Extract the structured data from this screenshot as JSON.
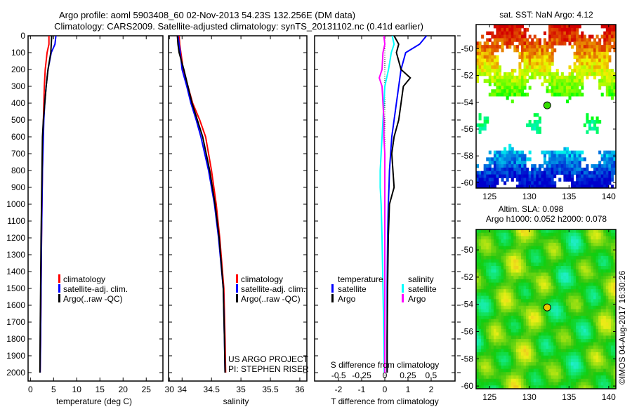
{
  "title_line1": "Argo profile: aoml 5903408_60 02-Nov-2013 54.23S 132.256E (DM data)",
  "title_line2": "Climatology: CARS2009. Satellite-adjusted climatology: synTS_20131102.nc (0.41d earlier)",
  "credit": "©IMOS 04-Aug-2017 16:30:26",
  "colors": {
    "climatology": "#ff0000",
    "satellite": "#0000ff",
    "argo": "#000000",
    "sal_satellite": "#00ffff",
    "sal_argo": "#ff00ff"
  },
  "chart_data": [
    {
      "type": "line",
      "xlabel": "temperature (deg C)",
      "xlim": [
        -0.5,
        28.6
      ],
      "ylim": [
        2050,
        0
      ],
      "xticks": [
        0,
        5,
        10,
        15,
        20,
        25,
        30
      ],
      "yticks": [
        0,
        100,
        200,
        300,
        400,
        500,
        600,
        700,
        800,
        900,
        1000,
        1100,
        1200,
        1300,
        1400,
        1500,
        1600,
        1700,
        1800,
        1900,
        2000
      ],
      "legend": [
        "climatology",
        "satellite-adj. clim.",
        "Argo(..raw -QC)"
      ],
      "pressure": [
        0,
        50,
        100,
        200,
        300,
        400,
        500,
        600,
        800,
        1000,
        1200,
        1500,
        1800,
        2000
      ],
      "series": [
        {
          "name": "climatology",
          "color": "#ff0000",
          "values": [
            4.0,
            4.0,
            3.6,
            3.2,
            3.0,
            2.9,
            2.8,
            2.7,
            2.6,
            2.5,
            2.4,
            2.3,
            2.2,
            2.1
          ]
        },
        {
          "name": "satellite-adj. clim.",
          "color": "#0000ff",
          "values": [
            5.5,
            5.3,
            4.5,
            3.8,
            3.4,
            3.1,
            2.9,
            2.8,
            2.6,
            2.5,
            2.4,
            2.3,
            2.2,
            2.1
          ]
        },
        {
          "name": "Argo",
          "color": "#000000",
          "values": [
            4.6,
            4.5,
            4.4,
            3.8,
            3.4,
            3.1,
            2.8,
            2.6,
            2.5,
            2.4,
            2.3,
            2.2,
            2.1,
            2.05
          ]
        }
      ]
    },
    {
      "type": "line",
      "xlabel": "salinity",
      "xlim": [
        33.77,
        36.12
      ],
      "ylim": [
        2050,
        0
      ],
      "xticks": [
        34,
        34.5,
        35,
        35.5,
        36
      ],
      "legend": [
        "climatology",
        "satellite-adj. clim.",
        "Argo(..raw -QC)"
      ],
      "annotation": [
        "US ARGO PROJECT",
        "PI: STEPHEN RISER"
      ],
      "pressure": [
        0,
        50,
        100,
        200,
        300,
        400,
        500,
        600,
        800,
        1000,
        1200,
        1500,
        1800,
        2000
      ],
      "series": [
        {
          "name": "climatology",
          "color": "#ff0000",
          "values": [
            33.95,
            33.96,
            33.98,
            34.02,
            34.1,
            34.18,
            34.3,
            34.4,
            34.5,
            34.58,
            34.64,
            34.71,
            34.73,
            34.74
          ]
        },
        {
          "name": "satellite-adj. clim.",
          "color": "#0000ff",
          "values": [
            33.93,
            33.95,
            33.97,
            34.0,
            34.08,
            34.15,
            34.24,
            34.32,
            34.45,
            34.55,
            34.62,
            34.7,
            34.72,
            34.73
          ]
        },
        {
          "name": "Argo",
          "color": "#000000",
          "values": [
            33.92,
            33.93,
            33.95,
            34.03,
            34.1,
            34.17,
            34.26,
            34.35,
            34.47,
            34.56,
            34.63,
            34.7,
            34.72,
            34.73
          ]
        }
      ]
    },
    {
      "type": "line",
      "xlabel": "T difference from climatology",
      "xlabel2": "S difference from climatology",
      "xlim": [
        -3.03,
        3.03
      ],
      "xlim2": [
        -0.76,
        0.76
      ],
      "ylim": [
        2050,
        0
      ],
      "xticks": [
        -2,
        -1,
        0,
        1,
        2
      ],
      "xticks2": [
        -0.5,
        -0.25,
        0,
        0.25,
        0.5
      ],
      "legend_headers": [
        "temperature",
        "salinity"
      ],
      "legend": [
        "satellite",
        "Argo",
        "satellite",
        "Argo"
      ],
      "pressure": [
        0,
        50,
        100,
        200,
        250,
        300,
        400,
        500,
        600,
        700,
        800,
        900,
        1000,
        1200,
        1500,
        1800,
        2000
      ],
      "series": [
        {
          "name": "T satellite",
          "axis": "T",
          "color": "#0000ff",
          "values": [
            1.8,
            1.5,
            0.9,
            0.7,
            0.65,
            0.6,
            0.5,
            0.4,
            0.3,
            0.25,
            0.2,
            0.18,
            0.15,
            0.12,
            0.1,
            0.1,
            0.1
          ]
        },
        {
          "name": "T Argo",
          "axis": "T",
          "color": "#000000",
          "values": [
            0.4,
            0.6,
            0.5,
            0.7,
            1.1,
            0.8,
            0.7,
            0.6,
            0.4,
            0.3,
            0.35,
            0.4,
            0.2,
            0.15,
            0.12,
            0.1,
            0.1
          ]
        },
        {
          "name": "S satellite",
          "axis": "S",
          "color": "#00ffff",
          "values": [
            0.08,
            0.1,
            0.07,
            0.04,
            0.02,
            0.0,
            -0.01,
            -0.02,
            -0.03,
            -0.04,
            -0.05,
            -0.05,
            -0.04,
            -0.03,
            -0.02,
            -0.01,
            -0.005
          ]
        },
        {
          "name": "S Argo",
          "axis": "S",
          "color": "#ff00ff",
          "values": [
            -0.01,
            0.0,
            -0.02,
            -0.03,
            -0.06,
            -0.03,
            -0.02,
            -0.01,
            -0.01,
            0.0,
            0.0,
            0.0,
            0.0,
            0.0,
            0.0,
            0.0,
            0.0
          ]
        }
      ]
    },
    {
      "type": "heatmap",
      "title": "sat. SST: NaN Argo: 4.12",
      "xlim": [
        123.3,
        140.9
      ],
      "ylim": [
        -60.4,
        -48.2
      ],
      "xticks": [
        125,
        130,
        135,
        140
      ],
      "yticks": [
        -50,
        -52,
        -54,
        -56,
        -58,
        -60
      ],
      "argo_position": [
        132.256,
        -54.23
      ]
    },
    {
      "type": "heatmap",
      "title_line1": "Altim. SLA: 0.098",
      "title_line2": "Argo h1000: 0.052 h2000: 0.078",
      "xlim": [
        123.3,
        140.9
      ],
      "ylim": [
        -60.2,
        -48.5
      ],
      "xticks": [
        125,
        130,
        135,
        140
      ],
      "yticks": [
        -50,
        -52,
        -54,
        -56,
        -58,
        -60
      ],
      "argo_position": [
        132.256,
        -54.23
      ]
    }
  ]
}
